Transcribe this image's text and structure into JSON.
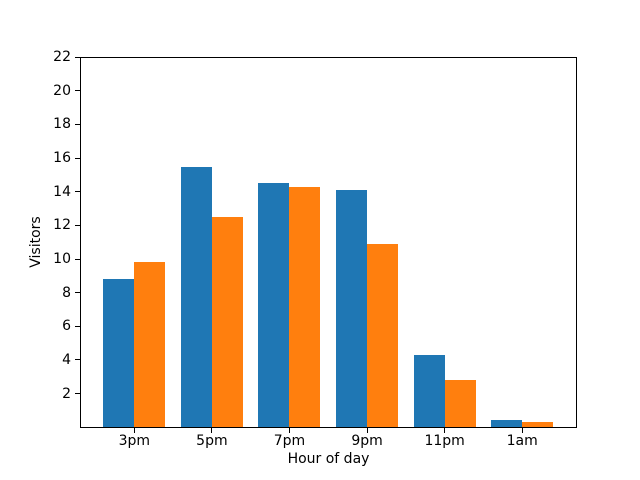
{
  "figure": {
    "background": "#ffffff"
  },
  "chart_data": {
    "type": "bar",
    "title": "",
    "xlabel": "Hour of day",
    "ylabel": "Visitors",
    "categories": [
      "3pm",
      "5pm",
      "7pm",
      "9pm",
      "11pm",
      "1am"
    ],
    "series": [
      {
        "name": "blue",
        "color": "#1f77b4",
        "values": [
          8.8,
          15.5,
          14.5,
          14.1,
          4.3,
          0.4
        ]
      },
      {
        "name": "orange",
        "color": "#ff7f0e",
        "values": [
          9.8,
          12.5,
          14.3,
          10.9,
          2.8,
          0.3
        ]
      }
    ],
    "ylim": [
      0,
      22
    ],
    "yticks": [
      2,
      4,
      6,
      8,
      10,
      12,
      14,
      16,
      18,
      20,
      22
    ],
    "xlim": [
      -0.7,
      5.7
    ],
    "bar_width": 0.4,
    "grid": false,
    "legend": false
  }
}
